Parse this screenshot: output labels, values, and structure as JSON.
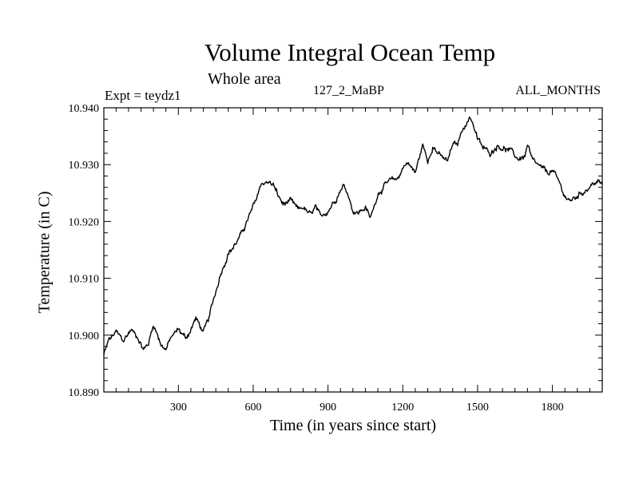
{
  "chart_data": {
    "type": "line",
    "title": "Volume Integral Ocean Temp",
    "subtitle": "Whole area",
    "annotations": {
      "experiment": "Expt = teydz1",
      "run": "127_2_MaBP",
      "months": "ALL_MONTHS"
    },
    "xlabel": "Time (in years since start)",
    "ylabel": "Temperature (in C)",
    "xlim": [
      1,
      2000
    ],
    "ylim": [
      10.89,
      10.94
    ],
    "xticks": [
      300,
      600,
      900,
      1200,
      1500,
      1800
    ],
    "yticks": [
      10.89,
      10.9,
      10.91,
      10.92,
      10.93,
      10.94
    ],
    "ytick_labels": [
      "10.890",
      "10.900",
      "10.910",
      "10.920",
      "10.930",
      "10.940"
    ],
    "series": [
      {
        "name": "Volume integral ocean temperature",
        "x": [
          1,
          20,
          50,
          80,
          110,
          140,
          160,
          180,
          200,
          230,
          250,
          270,
          300,
          330,
          350,
          370,
          400,
          420,
          440,
          470,
          500,
          520,
          550,
          580,
          610,
          630,
          650,
          680,
          700,
          720,
          750,
          780,
          800,
          830,
          850,
          870,
          900,
          930,
          960,
          980,
          1000,
          1020,
          1050,
          1070,
          1100,
          1130,
          1150,
          1180,
          1200,
          1220,
          1250,
          1280,
          1300,
          1320,
          1350,
          1380,
          1400,
          1420,
          1440,
          1460,
          1470,
          1480,
          1500,
          1520,
          1550,
          1580,
          1600,
          1630,
          1660,
          1690,
          1700,
          1720,
          1750,
          1780,
          1800,
          1830,
          1850,
          1870,
          1900,
          1930,
          1960,
          1980,
          2000
        ],
        "y": [
          10.8965,
          10.899,
          10.9005,
          10.899,
          10.901,
          10.8995,
          10.8975,
          10.8985,
          10.902,
          10.8985,
          10.8975,
          10.8995,
          10.901,
          10.8995,
          10.901,
          10.903,
          10.9005,
          10.9025,
          10.906,
          10.911,
          10.9145,
          10.9155,
          10.9175,
          10.9205,
          10.9235,
          10.9265,
          10.927,
          10.9265,
          10.9245,
          10.923,
          10.9235,
          10.922,
          10.9225,
          10.921,
          10.9225,
          10.9205,
          10.922,
          10.924,
          10.9265,
          10.925,
          10.922,
          10.9215,
          10.9225,
          10.9205,
          10.925,
          10.9265,
          10.927,
          10.9275,
          10.9295,
          10.9305,
          10.9285,
          10.9335,
          10.9305,
          10.9335,
          10.9315,
          10.9305,
          10.9335,
          10.9335,
          10.9365,
          10.9375,
          10.9385,
          10.9375,
          10.9345,
          10.933,
          10.932,
          10.9335,
          10.933,
          10.9325,
          10.931,
          10.9315,
          10.9335,
          10.9305,
          10.9295,
          10.9285,
          10.929,
          10.9265,
          10.9245,
          10.9235,
          10.9245,
          10.9255,
          10.9265,
          10.927,
          10.9265
        ]
      }
    ]
  }
}
